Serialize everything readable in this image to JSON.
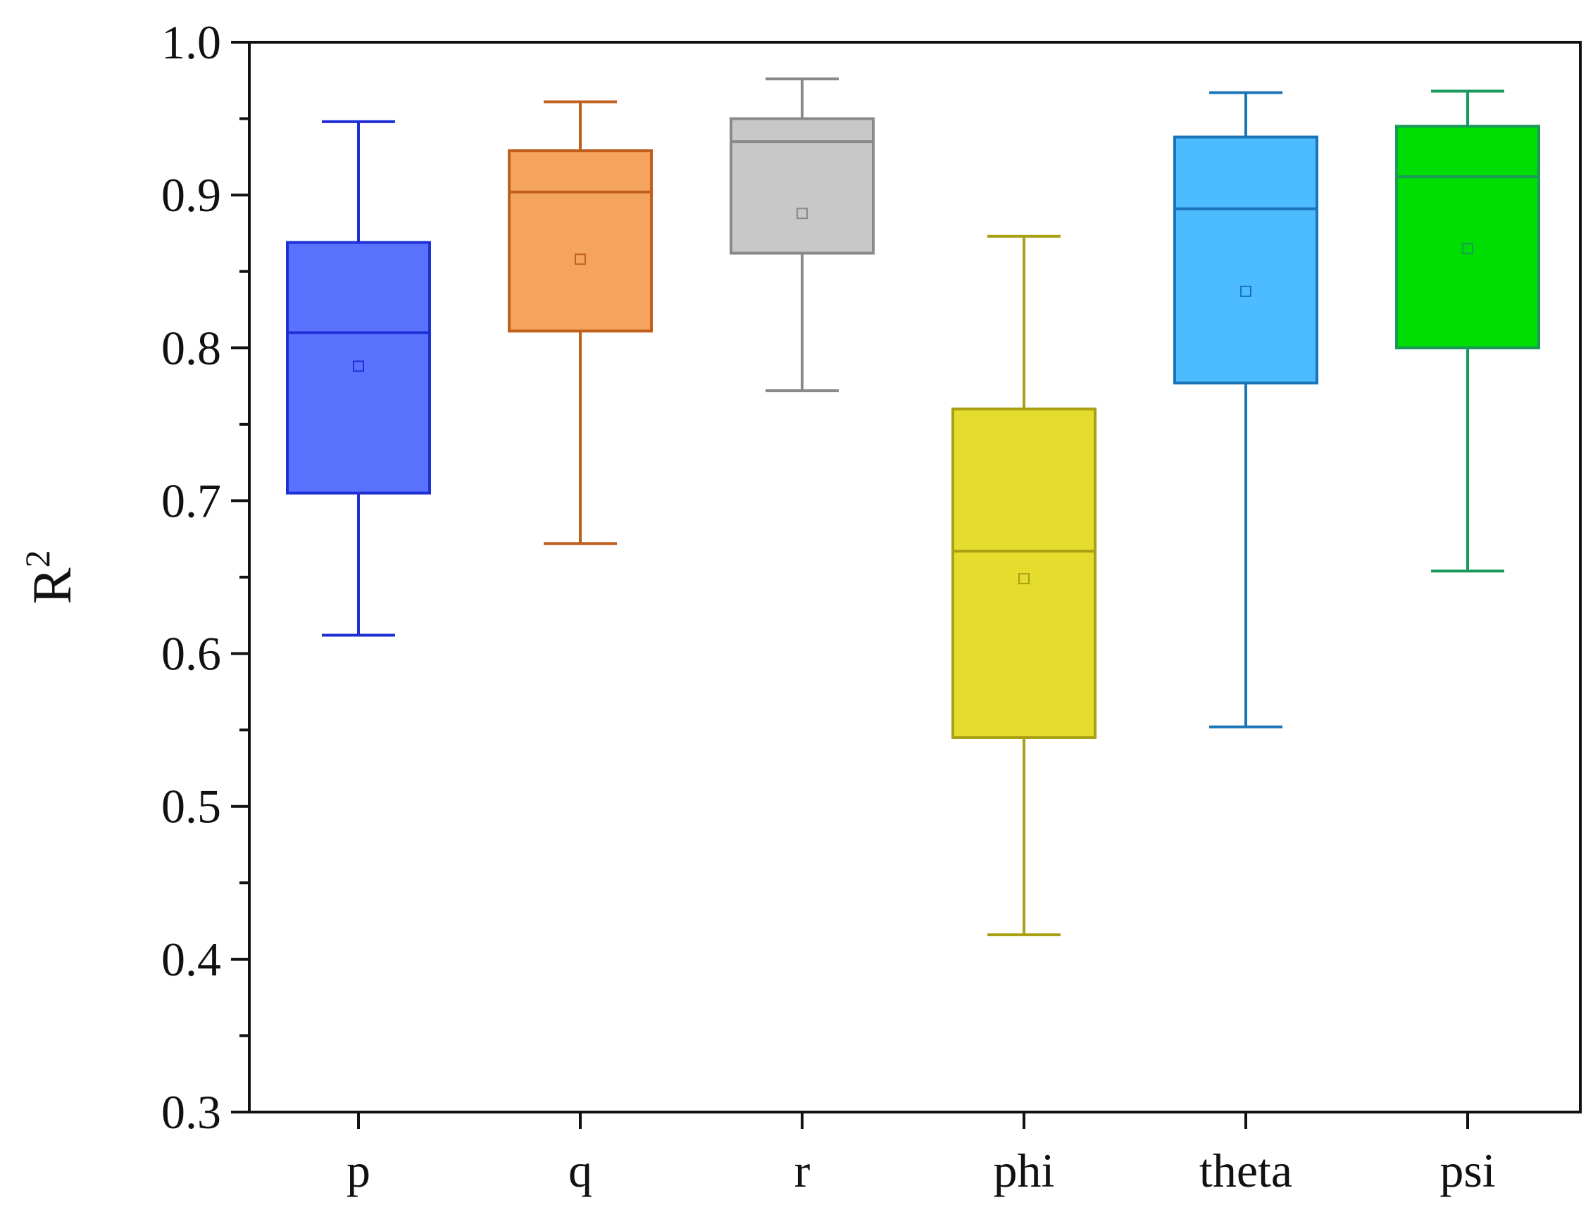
{
  "chart_data": {
    "type": "boxplot",
    "title": "",
    "xlabel": "",
    "ylabel": "R",
    "ylabel_superscript": "2",
    "ylim": [
      0.3,
      1.0
    ],
    "yticks": [
      {
        "value": 0.3,
        "label": "0.3"
      },
      {
        "value": 0.4,
        "label": "0.4"
      },
      {
        "value": 0.5,
        "label": "0.5"
      },
      {
        "value": 0.6,
        "label": "0.6"
      },
      {
        "value": 0.7,
        "label": "0.7"
      },
      {
        "value": 0.8,
        "label": "0.8"
      },
      {
        "value": 0.9,
        "label": "0.9"
      },
      {
        "value": 1.0,
        "label": "1.0"
      }
    ],
    "categories": [
      "p",
      "q",
      "r",
      "phi",
      "theta",
      "psi"
    ],
    "series": [
      {
        "name": "p",
        "whisker_low": 0.612,
        "q1": 0.705,
        "median": 0.81,
        "q3": 0.869,
        "whisker_high": 0.948,
        "mean": 0.788,
        "fill": "#5a73ff",
        "stroke": "#1f2fd6"
      },
      {
        "name": "q",
        "whisker_low": 0.672,
        "q1": 0.811,
        "median": 0.902,
        "q3": 0.929,
        "whisker_high": 0.961,
        "mean": 0.858,
        "fill": "#f5a45e",
        "stroke": "#c0601c"
      },
      {
        "name": "r",
        "whisker_low": 0.772,
        "q1": 0.862,
        "median": 0.935,
        "q3": 0.95,
        "whisker_high": 0.976,
        "mean": 0.888,
        "fill": "#c8c8c8",
        "stroke": "#8a8a8a"
      },
      {
        "name": "phi",
        "whisker_low": 0.416,
        "q1": 0.545,
        "median": 0.667,
        "q3": 0.76,
        "whisker_high": 0.873,
        "mean": 0.649,
        "fill": "#e5dd2e",
        "stroke": "#a9a014"
      },
      {
        "name": "theta",
        "whisker_low": 0.552,
        "q1": 0.777,
        "median": 0.891,
        "q3": 0.938,
        "whisker_high": 0.967,
        "mean": 0.837,
        "fill": "#4cbcff",
        "stroke": "#1a74b8"
      },
      {
        "name": "psi",
        "whisker_low": 0.654,
        "q1": 0.8,
        "median": 0.912,
        "q3": 0.945,
        "whisker_high": 0.968,
        "mean": 0.865,
        "fill": "#00dd00",
        "stroke": "#1a9a5a"
      }
    ],
    "grid": false,
    "legend": "none",
    "minor_yticks": true
  },
  "colors": {
    "axis": "#111111",
    "background": "#ffffff"
  }
}
